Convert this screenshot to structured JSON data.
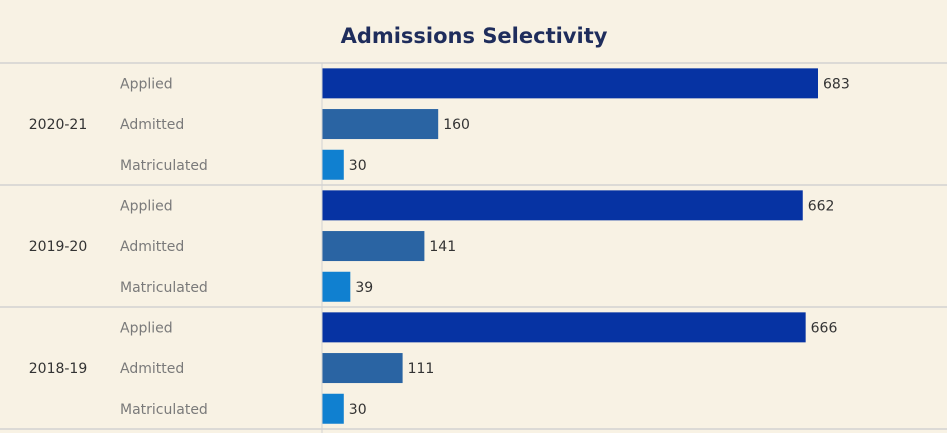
{
  "chart_data": {
    "type": "bar",
    "orientation": "horizontal",
    "title": "Admissions Selectivity",
    "xlim": [
      0,
      775
    ],
    "grid": false,
    "colors": {
      "background": "#f8f2e4",
      "title": "#1f2d5c",
      "text": "#333333",
      "label": "#7a7a7a",
      "divider": "#d2d2d2",
      "Applied": "#0633a3",
      "Admitted": "#2a64a3",
      "Matriculated": "#1080d0"
    },
    "measures": [
      "Applied",
      "Admitted",
      "Matriculated"
    ],
    "groups": [
      {
        "year": "2020-21",
        "values": [
          683,
          160,
          30
        ]
      },
      {
        "year": "2019-20",
        "values": [
          662,
          141,
          39
        ]
      },
      {
        "year": "2018-19",
        "values": [
          666,
          111,
          30
        ]
      }
    ]
  }
}
